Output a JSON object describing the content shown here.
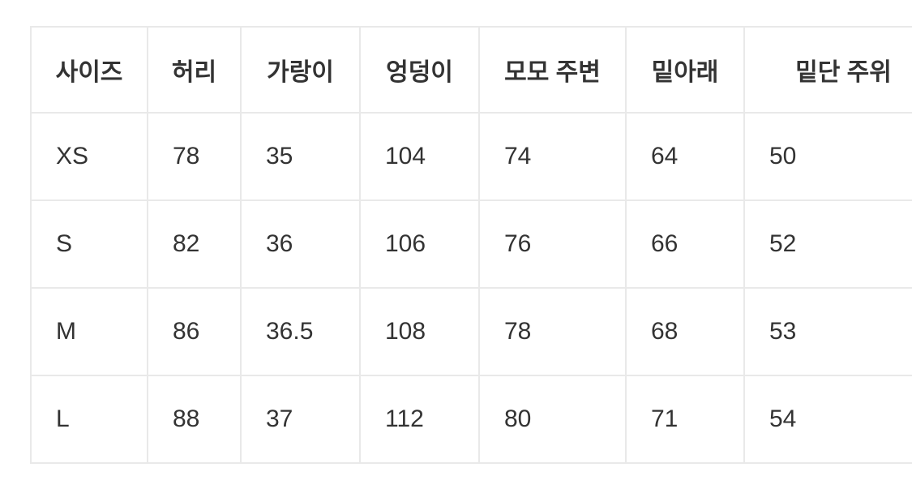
{
  "colors": {
    "background": "#ffffff",
    "border": "#e9e9e9",
    "text": "#333333"
  },
  "chart_data": {
    "type": "table",
    "columns": [
      "사이즈",
      "허리",
      "가랑이",
      "엉덩이",
      "모모 주변",
      "밑아래",
      "밑단 주위"
    ],
    "rows": [
      [
        "XS",
        "78",
        "35",
        "104",
        "74",
        "64",
        "50"
      ],
      [
        "S",
        "82",
        "36",
        "106",
        "76",
        "66",
        "52"
      ],
      [
        "M",
        "86",
        "36.5",
        "108",
        "78",
        "68",
        "53"
      ],
      [
        "L",
        "88",
        "37",
        "112",
        "80",
        "71",
        "54"
      ]
    ]
  }
}
